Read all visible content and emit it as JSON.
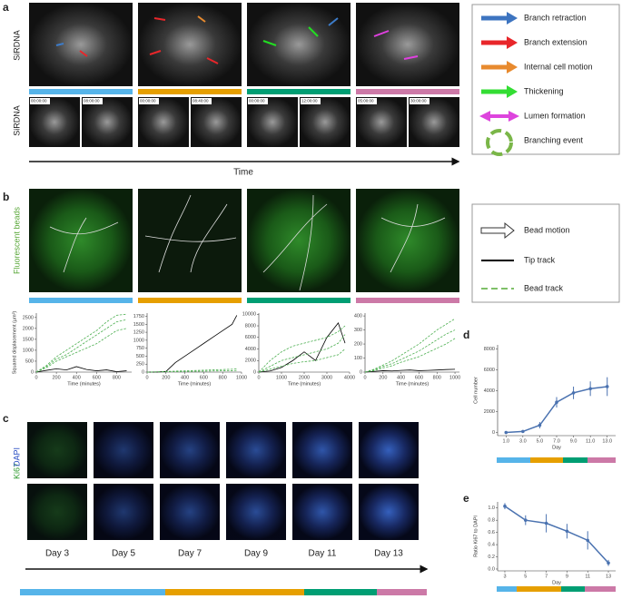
{
  "panel_labels": [
    "a",
    "b",
    "c",
    "d",
    "e"
  ],
  "panel_a": {
    "row_labels": [
      "SiRDNA",
      "SiRDNA"
    ],
    "timestamps": [
      "00:00:00",
      "08:00:00",
      "00:00:00",
      "08:40:00",
      "00:00:00",
      "12:00:00",
      "05:00:00",
      "30:00:00"
    ],
    "axis_label": "Time",
    "legend": [
      "Branch retraction",
      "Branch extension",
      "Internal cell motion",
      "Thickening",
      "Lumen formation",
      "Branching event"
    ]
  },
  "panel_b": {
    "row_label": "Fluorescent beads",
    "legend": [
      "Bead motion",
      "Tip track",
      "Bead track"
    ]
  },
  "panel_c": {
    "stain_labels": [
      "Ki67",
      "DAPI"
    ],
    "days": [
      "Day 3",
      "Day 5",
      "Day 7",
      "Day 9",
      "Day 11",
      "Day 13"
    ]
  },
  "chart_data": [
    {
      "type": "line",
      "ylabel": "Squared displacement (µm²)",
      "xlabel": "Time (minutes)",
      "xlim": [
        0,
        950
      ],
      "ylim": [
        0,
        2700
      ],
      "xticks": [
        0,
        200,
        400,
        600,
        800
      ],
      "yticks": [
        0,
        500,
        1000,
        1500,
        2000,
        2500
      ],
      "series": [
        {
          "color": "#000000",
          "dashed": false,
          "x": [
            0,
            100,
            200,
            300,
            400,
            500,
            600,
            700,
            800,
            900
          ],
          "values": [
            0,
            80,
            150,
            100,
            250,
            120,
            60,
            100,
            20,
            60
          ]
        },
        {
          "color": "#4caf50",
          "dashed": true,
          "x": [
            0,
            100,
            200,
            300,
            400,
            500,
            600,
            700,
            800,
            900
          ],
          "values": [
            0,
            300,
            700,
            1000,
            1300,
            1600,
            1900,
            2300,
            2600,
            2650
          ]
        },
        {
          "color": "#4caf50",
          "dashed": true,
          "x": [
            0,
            100,
            200,
            300,
            400,
            500,
            600,
            700,
            800,
            900
          ],
          "values": [
            0,
            250,
            600,
            800,
            1100,
            1400,
            1700,
            2000,
            2300,
            2400
          ]
        },
        {
          "color": "#4caf50",
          "dashed": true,
          "x": [
            0,
            100,
            200,
            300,
            400,
            500,
            600,
            700,
            800,
            900
          ],
          "values": [
            0,
            200,
            500,
            700,
            900,
            1100,
            1300,
            1600,
            1900,
            2000
          ]
        }
      ]
    },
    {
      "type": "line",
      "xlabel": "Time (minutes)",
      "xlim": [
        0,
        1000
      ],
      "ylim": [
        0,
        1850
      ],
      "xticks": [
        0,
        200,
        400,
        600,
        800,
        1000
      ],
      "yticks": [
        0,
        250,
        500,
        750,
        1000,
        1250,
        1500,
        1750
      ],
      "series": [
        {
          "color": "#000000",
          "dashed": false,
          "x": [
            0,
            100,
            200,
            300,
            400,
            500,
            600,
            700,
            800,
            900,
            950
          ],
          "values": [
            0,
            0,
            20,
            300,
            500,
            700,
            900,
            1100,
            1300,
            1500,
            1780
          ]
        },
        {
          "color": "#4caf50",
          "dashed": true,
          "x": [
            0,
            100,
            200,
            300,
            400,
            500,
            600,
            700,
            800,
            900,
            950
          ],
          "values": [
            0,
            10,
            20,
            30,
            40,
            50,
            60,
            70,
            80,
            90,
            100
          ]
        },
        {
          "color": "#4caf50",
          "dashed": true,
          "x": [
            0,
            100,
            200,
            300,
            400,
            500,
            600,
            700,
            800,
            900,
            950
          ],
          "values": [
            0,
            5,
            10,
            15,
            20,
            25,
            30,
            35,
            40,
            45,
            50
          ]
        }
      ]
    },
    {
      "type": "line",
      "xlabel": "Time (minutes)",
      "xlim": [
        0,
        4000
      ],
      "ylim": [
        0,
        10200
      ],
      "xticks": [
        0,
        1000,
        2000,
        3000,
        4000
      ],
      "yticks": [
        0,
        2000,
        4000,
        6000,
        8000,
        10000
      ],
      "series": [
        {
          "color": "#000000",
          "dashed": false,
          "x": [
            0,
            500,
            1000,
            1500,
            2000,
            2500,
            3000,
            3500,
            3800
          ],
          "values": [
            0,
            200,
            800,
            2000,
            3500,
            2000,
            6000,
            8500,
            5000
          ]
        },
        {
          "color": "#4caf50",
          "dashed": true,
          "x": [
            0,
            500,
            1000,
            1500,
            2000,
            2500,
            3000,
            3500,
            3800
          ],
          "values": [
            0,
            2000,
            3500,
            4500,
            5000,
            5500,
            6000,
            7000,
            8000
          ]
        },
        {
          "color": "#4caf50",
          "dashed": true,
          "x": [
            0,
            500,
            1000,
            1500,
            2000,
            2500,
            3000,
            3500,
            3800
          ],
          "values": [
            0,
            1000,
            2000,
            2500,
            3000,
            3500,
            4000,
            5000,
            6500
          ]
        },
        {
          "color": "#4caf50",
          "dashed": true,
          "x": [
            0,
            500,
            1000,
            1500,
            2000,
            2500,
            3000,
            3500,
            3800
          ],
          "values": [
            0,
            500,
            1000,
            1500,
            1800,
            2000,
            2500,
            3000,
            4000
          ]
        }
      ]
    },
    {
      "type": "line",
      "xlabel": "Time (minutes)",
      "xlim": [
        0,
        1050
      ],
      "ylim": [
        0,
        420
      ],
      "xticks": [
        0,
        200,
        400,
        600,
        800,
        1000
      ],
      "yticks": [
        0,
        100,
        200,
        300,
        400
      ],
      "series": [
        {
          "color": "#000000",
          "dashed": false,
          "x": [
            0,
            100,
            200,
            300,
            400,
            500,
            600,
            700,
            800,
            900,
            1000
          ],
          "values": [
            0,
            5,
            10,
            8,
            12,
            15,
            10,
            12,
            15,
            18,
            20
          ]
        },
        {
          "color": "#4caf50",
          "dashed": true,
          "x": [
            0,
            100,
            200,
            300,
            400,
            500,
            600,
            700,
            800,
            900,
            1000
          ],
          "values": [
            0,
            20,
            50,
            80,
            120,
            160,
            200,
            250,
            300,
            340,
            380
          ]
        },
        {
          "color": "#4caf50",
          "dashed": true,
          "x": [
            0,
            100,
            200,
            300,
            400,
            500,
            600,
            700,
            800,
            900,
            1000
          ],
          "values": [
            0,
            15,
            40,
            60,
            90,
            120,
            150,
            190,
            230,
            270,
            300
          ]
        },
        {
          "color": "#4caf50",
          "dashed": true,
          "x": [
            0,
            100,
            200,
            300,
            400,
            500,
            600,
            700,
            800,
            900,
            1000
          ],
          "values": [
            0,
            10,
            30,
            45,
            70,
            90,
            110,
            140,
            170,
            200,
            240
          ]
        }
      ]
    },
    {
      "type": "errorline",
      "ylabel": "Cell number",
      "xlabel": "Day",
      "color": "#4a72b0",
      "xlim": [
        0,
        14
      ],
      "ylim": [
        -300,
        8400
      ],
      "xticks": [
        {
          "value": 1,
          "label": "1.0"
        },
        {
          "value": 3,
          "label": "3.0"
        },
        {
          "value": 5,
          "label": "5.0"
        },
        {
          "value": 7,
          "label": "7.0"
        },
        {
          "value": 9,
          "label": "9.0"
        },
        {
          "value": 11,
          "label": "11.0"
        },
        {
          "value": 13,
          "label": "13.0"
        }
      ],
      "yticks": [
        0,
        2000,
        4000,
        6000,
        8000
      ],
      "x": [
        1,
        3,
        5,
        7,
        9,
        11,
        13
      ],
      "values": [
        0,
        100,
        700,
        2900,
        3800,
        4200,
        4400
      ],
      "errors": [
        50,
        80,
        300,
        500,
        600,
        700,
        900
      ]
    },
    {
      "type": "errorline",
      "ylabel": "Ratio Ki67 to DAPI",
      "xlabel": "Day",
      "color": "#4a72b0",
      "xlim": [
        2.3,
        13.7
      ],
      "ylim": [
        -0.03,
        1.1
      ],
      "xticks": [
        3,
        5,
        7,
        9,
        11,
        13
      ],
      "yticks": [
        {
          "value": 0,
          "label": "0.0"
        },
        0.2,
        0.4,
        0.6,
        0.8,
        {
          "value": 1,
          "label": "1.0"
        }
      ],
      "x": [
        3,
        5,
        7,
        9,
        11,
        13
      ],
      "values": [
        1.03,
        0.8,
        0.75,
        0.62,
        0.47,
        0.1
      ],
      "errors": [
        0.05,
        0.08,
        0.15,
        0.12,
        0.15,
        0.05
      ]
    }
  ]
}
